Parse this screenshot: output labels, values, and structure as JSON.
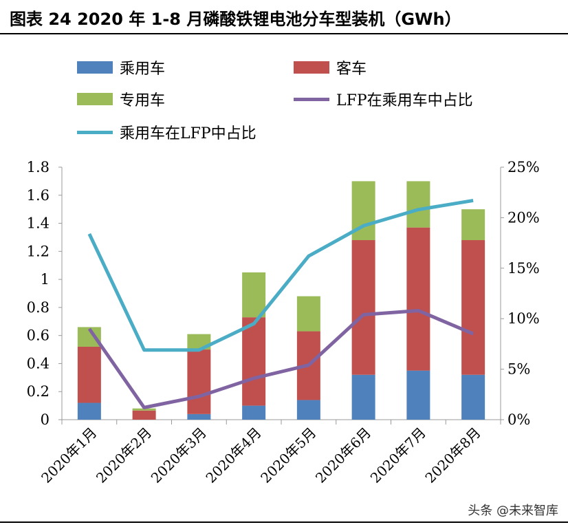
{
  "title": "图表 24 2020 年 1-8 月磷酸铁锂电池分车型装机（GWh）",
  "watermark": "头条 @未来智库",
  "chart_data": {
    "type": "bar+line",
    "categories": [
      "2020年1月",
      "2020年2月",
      "2020年3月",
      "2020年4月",
      "2020年5月",
      "2020年6月",
      "2020年7月",
      "2020年8月"
    ],
    "series": [
      {
        "name": "乘用车",
        "type": "stacked-bar",
        "axis": "left",
        "color": "#4f81bd",
        "values": [
          0.12,
          0,
          0.04,
          0.1,
          0.14,
          0.32,
          0.35,
          0.32
        ]
      },
      {
        "name": "客车",
        "type": "stacked-bar",
        "axis": "left",
        "color": "#c0504d",
        "values": [
          0.4,
          0.065,
          0.46,
          0.63,
          0.49,
          0.96,
          1.02,
          0.96
        ]
      },
      {
        "name": "专用车",
        "type": "stacked-bar",
        "axis": "left",
        "color": "#9bbb59",
        "values": [
          0.14,
          0.015,
          0.11,
          0.32,
          0.25,
          0.42,
          0.33,
          0.22
        ]
      },
      {
        "name": "LFP在乘用车中占比",
        "type": "line",
        "axis": "right",
        "color": "#8064a2",
        "values": [
          9.0,
          1.2,
          2.3,
          4.1,
          5.4,
          10.4,
          10.8,
          8.5
        ]
      },
      {
        "name": "乘用车在LFP中占比",
        "type": "line",
        "axis": "right",
        "color": "#4bacc6",
        "values": [
          18.4,
          6.9,
          6.9,
          9.5,
          16.2,
          19.2,
          20.8,
          21.7
        ]
      }
    ],
    "left_axis": {
      "min": 0,
      "max": 1.8,
      "ticks": [
        "0",
        "0.2",
        "0.4",
        "0.6",
        "0.8",
        "1",
        "1.2",
        "1.4",
        "1.6",
        "1.8"
      ]
    },
    "right_axis": {
      "min": 0,
      "max": 25,
      "unit": "%",
      "ticks": [
        "0%",
        "5%",
        "10%",
        "15%",
        "20%",
        "25%"
      ]
    },
    "legend_position": "top",
    "grid": false
  }
}
